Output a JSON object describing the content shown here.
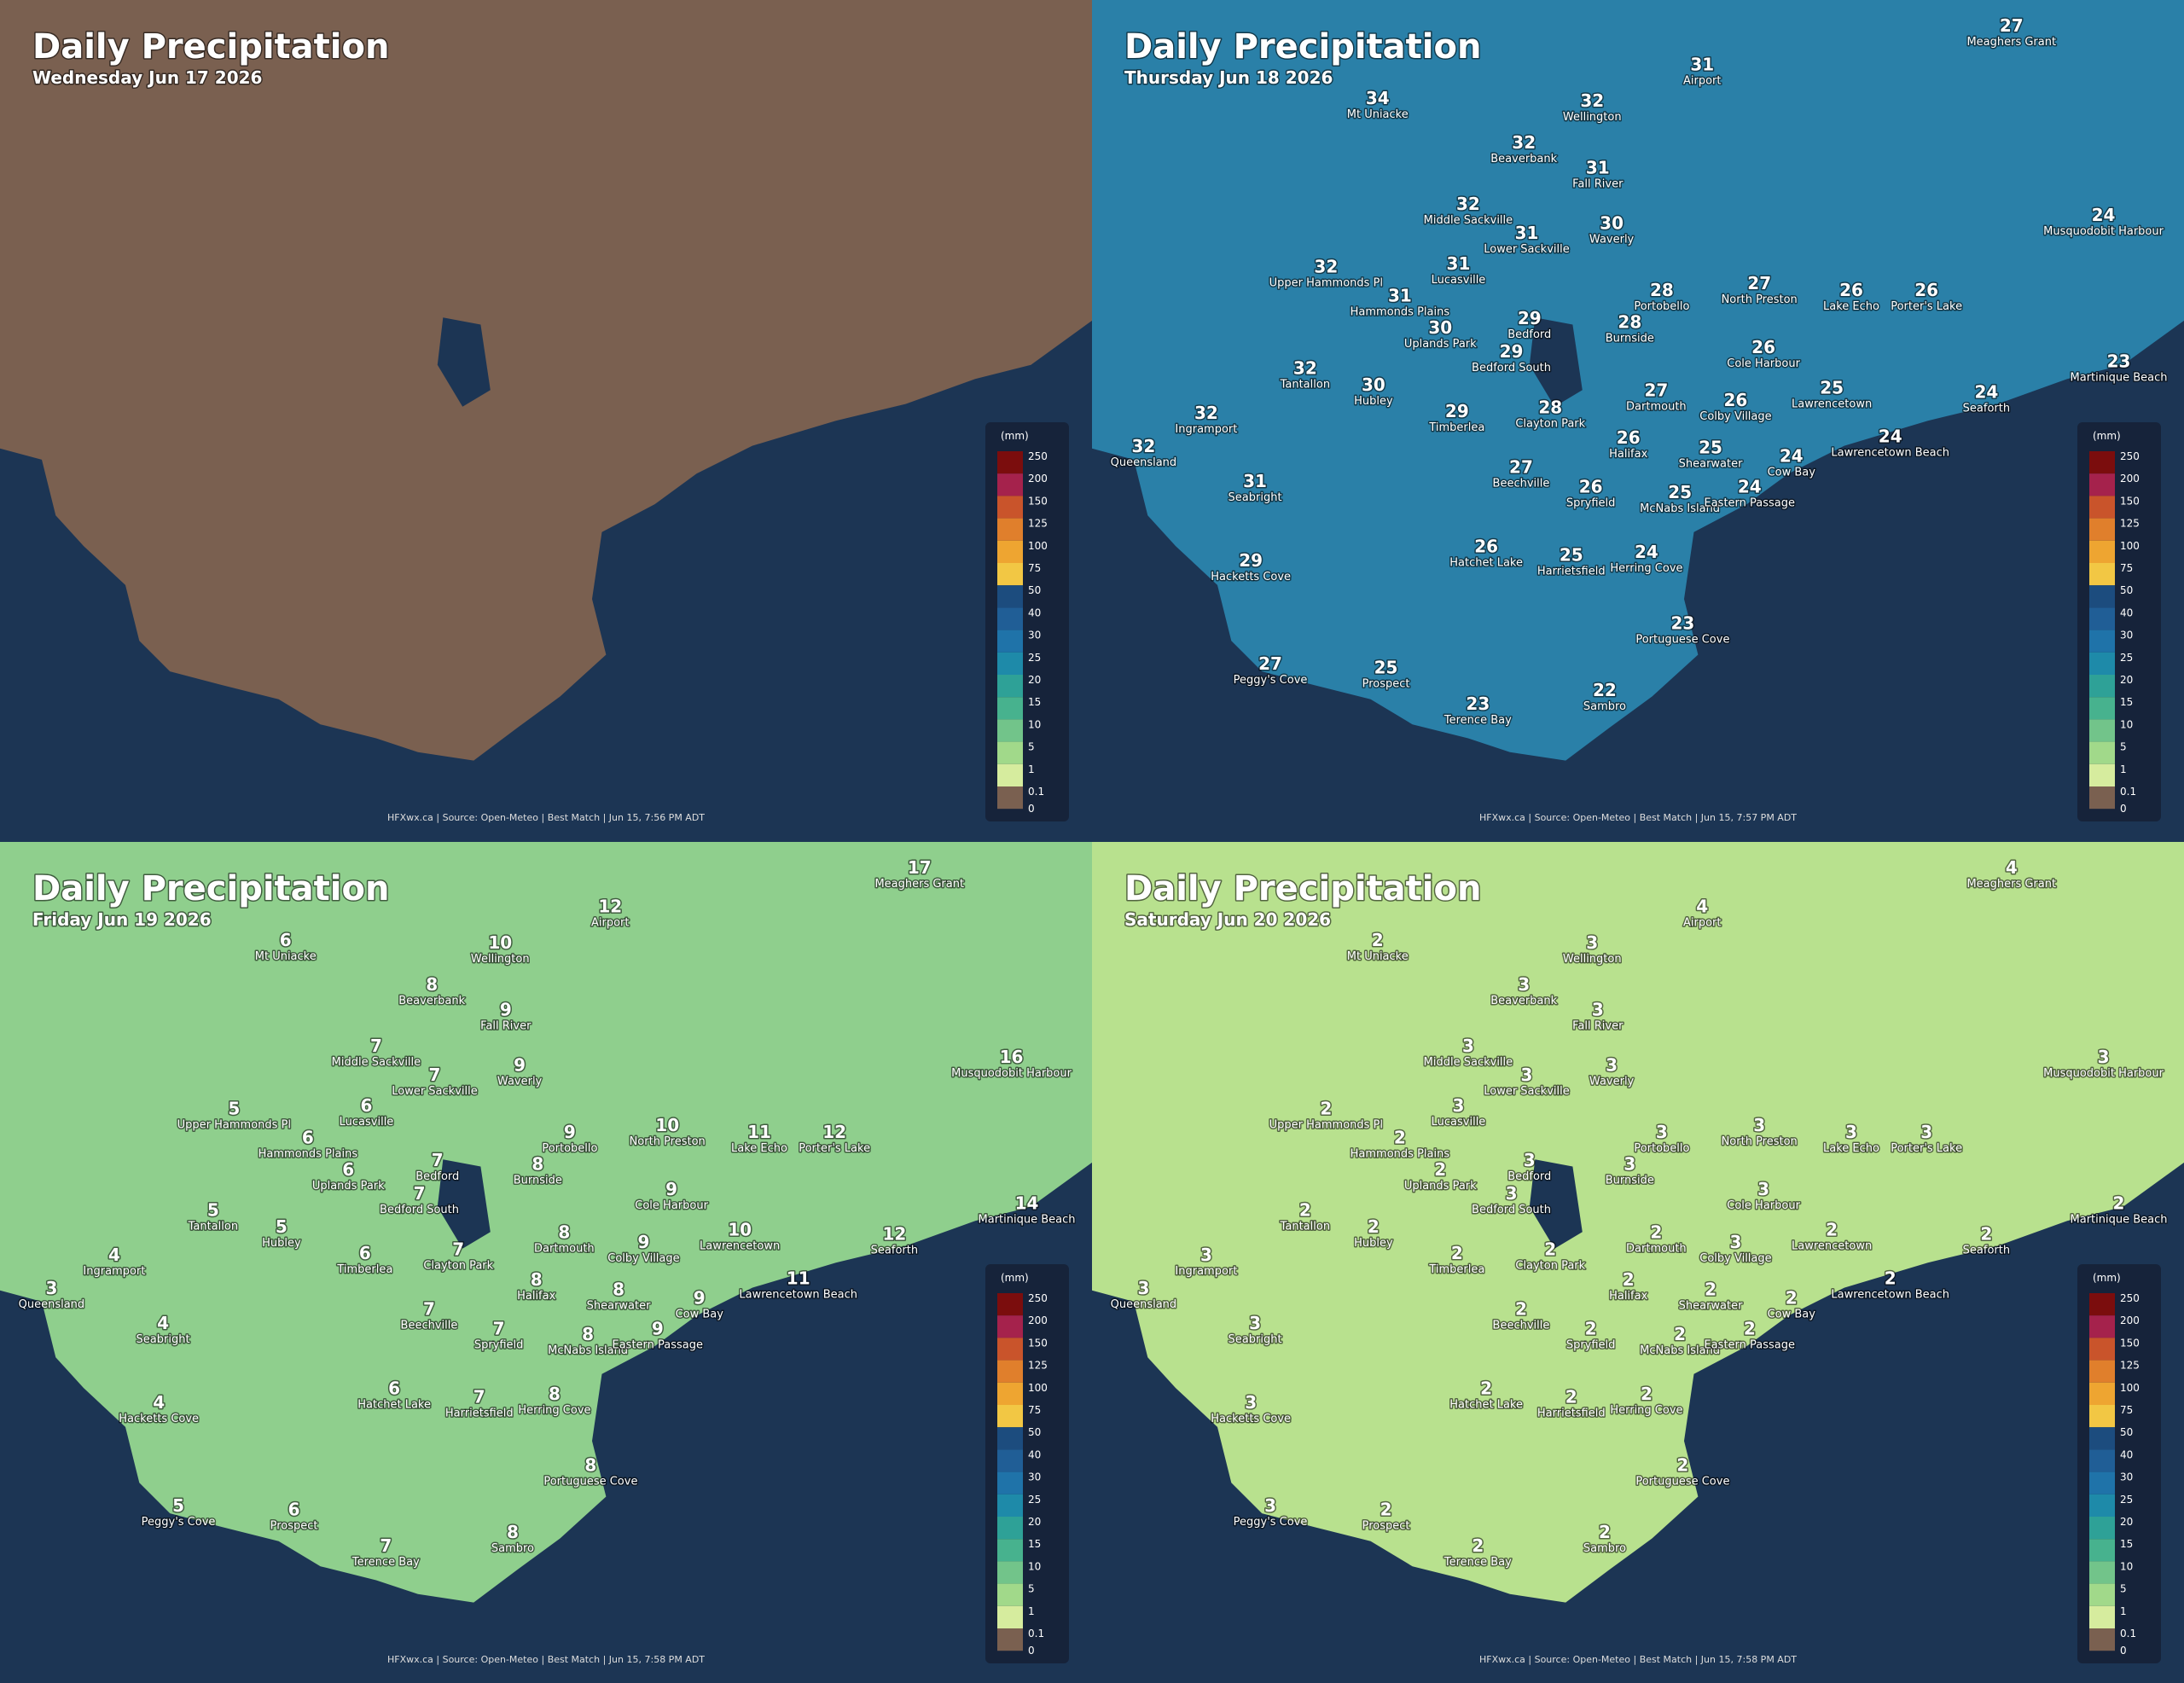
{
  "legend": {
    "unit": "(mm)",
    "labels": [
      250,
      200,
      150,
      125,
      100,
      75,
      50,
      40,
      30,
      25,
      20,
      15,
      10,
      5,
      1,
      0.1,
      0
    ],
    "colors": [
      "#7b0d0d",
      "#a5224c",
      "#c9542b",
      "#e07f2c",
      "#eea531",
      "#f2c744",
      "#1c4c7e",
      "#205e96",
      "#1f73a9",
      "#1e8aa9",
      "#2ea197",
      "#47b28e",
      "#72c48a",
      "#a1d98a",
      "#d6ec9e",
      "#7a6050"
    ]
  },
  "places": [
    "Meaghers Grant",
    "Airport",
    "Mt Uniacke",
    "Wellington",
    "Beaverbank",
    "Fall River",
    "Middle Sackville",
    "Lower Sackville",
    "Waverly",
    "Lucasville",
    "Upper Hammonds Pl",
    "Hammonds Plains",
    "Uplands Park",
    "Bedford",
    "Portobello",
    "North Preston",
    "Burnside",
    "Lake Echo",
    "Porter's Lake",
    "Musquodobit Harbour",
    "Bedford South",
    "Cole Harbour",
    "Tantallon",
    "Hubley",
    "Dartmouth",
    "Lawrencetown",
    "Martinique Beach",
    "Seaforth",
    "Timberlea",
    "Clayton Park",
    "Colby Village",
    "Ingramport",
    "Halifax",
    "Shearwater",
    "Lawrencetown Beach",
    "Queensland",
    "Cow Bay",
    "Beechville",
    "Seabright",
    "Spryfield",
    "McNabs Island",
    "Eastern Passage",
    "Hatchet Lake",
    "Harrietsfield",
    "Herring Cove",
    "Hacketts Cove",
    "Portuguese Cove",
    "Peggy's Cove",
    "Prospect",
    "Terence Bay",
    "Sambro"
  ],
  "panels": [
    {
      "title": "Daily Precipitation",
      "subtitle": "Wednesday Jun 17 2026",
      "footer": "HFXwx.ca | Source: Open-Meteo | Best Match | Jun 15, 7:56 PM ADT",
      "land_color": "#7a6050"
    },
    {
      "title": "Daily Precipitation",
      "subtitle": "Thursday Jun 18 2026",
      "footer": "HFXwx.ca | Source: Open-Meteo | Best Match | Jun 15, 7:57 PM ADT",
      "land_color": "#2a80a8",
      "values": [
        27,
        31,
        34,
        32,
        32,
        31,
        32,
        31,
        30,
        31,
        32,
        31,
        30,
        29,
        28,
        27,
        28,
        26,
        26,
        24,
        29,
        26,
        32,
        30,
        27,
        25,
        23,
        24,
        29,
        28,
        26,
        32,
        26,
        25,
        24,
        32,
        24,
        27,
        31,
        26,
        25,
        24,
        26,
        25,
        24,
        29,
        23,
        27,
        25,
        23,
        22
      ]
    },
    {
      "title": "Daily Precipitation",
      "subtitle": "Friday Jun 19 2026",
      "footer": "HFXwx.ca | Source: Open-Meteo | Best Match | Jun 15, 7:58 PM ADT",
      "land_color": "#8fcf8d",
      "values": [
        17,
        12,
        6,
        10,
        8,
        9,
        7,
        7,
        9,
        6,
        5,
        6,
        6,
        7,
        9,
        10,
        8,
        11,
        12,
        16,
        7,
        9,
        5,
        5,
        8,
        10,
        14,
        12,
        6,
        7,
        9,
        4,
        8,
        8,
        11,
        3,
        9,
        7,
        4,
        7,
        8,
        9,
        6,
        7,
        8,
        4,
        8,
        5,
        6,
        7,
        8
      ]
    },
    {
      "title": "Daily Precipitation",
      "subtitle": "Saturday Jun 20 2026",
      "footer": "HFXwx.ca | Source: Open-Meteo | Best Match | Jun 15, 7:58 PM ADT",
      "land_color": "#b8e18e",
      "values": [
        4,
        4,
        2,
        3,
        3,
        3,
        3,
        3,
        3,
        3,
        2,
        2,
        2,
        3,
        3,
        3,
        3,
        3,
        3,
        3,
        3,
        3,
        2,
        2,
        2,
        2,
        2,
        2,
        2,
        2,
        3,
        3,
        2,
        2,
        2,
        3,
        2,
        2,
        3,
        2,
        2,
        2,
        2,
        2,
        2,
        3,
        2,
        3,
        2,
        2,
        2
      ]
    }
  ]
}
